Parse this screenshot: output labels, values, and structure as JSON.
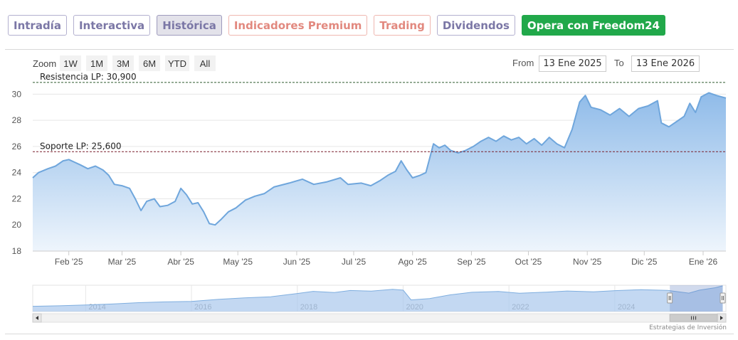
{
  "tabs": [
    {
      "label": "Intradía",
      "style": "purple"
    },
    {
      "label": "Interactiva",
      "style": "purple"
    },
    {
      "label": "Histórica",
      "style": "purple active"
    },
    {
      "label": "Indicadores Premium",
      "style": "coral"
    },
    {
      "label": "Trading",
      "style": "coral"
    },
    {
      "label": "Dividendos",
      "style": "purple"
    },
    {
      "label": "Opera con Freedom24",
      "style": "cta"
    }
  ],
  "toolbar": {
    "zoom_label": "Zoom",
    "zoom_buttons": [
      "1W",
      "1M",
      "3M",
      "6M",
      "YTD",
      "All"
    ],
    "from_label": "From",
    "from_value": "13 Ene 2025",
    "to_label": "To",
    "to_value": "13 Ene 2026"
  },
  "colors": {
    "line": "#6fa6dc",
    "fill_top": "#8fbbe9",
    "fill_bottom": "#eef5fc",
    "resistance": "#2f5a2f",
    "support": "#7a1f2a",
    "grid": "#e6e6e6"
  },
  "chart_data": {
    "type": "area",
    "title": "",
    "xlabel": "",
    "ylabel": "",
    "x_range": [
      "2025-01-13",
      "2026-01-13"
    ],
    "ylim": [
      18,
      31
    ],
    "y_ticks": [
      18,
      20,
      22,
      24,
      26,
      28,
      30
    ],
    "x_ticks": [
      {
        "date": "2025-02-01",
        "label": "Feb '25"
      },
      {
        "date": "2025-03-01",
        "label": "Mar '25"
      },
      {
        "date": "2025-04-01",
        "label": "Abr '25"
      },
      {
        "date": "2025-05-01",
        "label": "May '25"
      },
      {
        "date": "2025-06-01",
        "label": "Jun '25"
      },
      {
        "date": "2025-07-01",
        "label": "Jul '25"
      },
      {
        "date": "2025-08-01",
        "label": "Ago '25"
      },
      {
        "date": "2025-09-01",
        "label": "Sep '25"
      },
      {
        "date": "2025-10-01",
        "label": "Oct '25"
      },
      {
        "date": "2025-11-01",
        "label": "Nov '25"
      },
      {
        "date": "2025-12-01",
        "label": "Dic '25"
      },
      {
        "date": "2026-01-01",
        "label": "Ene '26"
      }
    ],
    "series": [
      {
        "points": [
          [
            "2025-01-13",
            23.6
          ],
          [
            "2025-01-16",
            24.0
          ],
          [
            "2025-01-21",
            24.3
          ],
          [
            "2025-01-25",
            24.5
          ],
          [
            "2025-01-29",
            24.9
          ],
          [
            "2025-02-01",
            25.0
          ],
          [
            "2025-02-04",
            24.8
          ],
          [
            "2025-02-07",
            24.6
          ],
          [
            "2025-02-11",
            24.3
          ],
          [
            "2025-02-15",
            24.5
          ],
          [
            "2025-02-19",
            24.2
          ],
          [
            "2025-02-22",
            23.8
          ],
          [
            "2025-02-25",
            23.1
          ],
          [
            "2025-03-01",
            23.0
          ],
          [
            "2025-03-05",
            22.8
          ],
          [
            "2025-03-08",
            22.0
          ],
          [
            "2025-03-11",
            21.1
          ],
          [
            "2025-03-14",
            21.8
          ],
          [
            "2025-03-18",
            22.0
          ],
          [
            "2025-03-21",
            21.4
          ],
          [
            "2025-03-25",
            21.5
          ],
          [
            "2025-03-29",
            21.8
          ],
          [
            "2025-04-01",
            22.8
          ],
          [
            "2025-04-04",
            22.3
          ],
          [
            "2025-04-07",
            21.6
          ],
          [
            "2025-04-10",
            21.7
          ],
          [
            "2025-04-13",
            21.0
          ],
          [
            "2025-04-16",
            20.1
          ],
          [
            "2025-04-19",
            20.0
          ],
          [
            "2025-04-22",
            20.4
          ],
          [
            "2025-04-26",
            21.0
          ],
          [
            "2025-04-30",
            21.3
          ],
          [
            "2025-05-05",
            21.9
          ],
          [
            "2025-05-10",
            22.2
          ],
          [
            "2025-05-15",
            22.4
          ],
          [
            "2025-05-20",
            22.9
          ],
          [
            "2025-05-28",
            23.2
          ],
          [
            "2025-06-04",
            23.5
          ],
          [
            "2025-06-10",
            23.1
          ],
          [
            "2025-06-17",
            23.3
          ],
          [
            "2025-06-24",
            23.6
          ],
          [
            "2025-06-28",
            23.1
          ],
          [
            "2025-07-05",
            23.2
          ],
          [
            "2025-07-10",
            23.0
          ],
          [
            "2025-07-15",
            23.4
          ],
          [
            "2025-07-19",
            23.8
          ],
          [
            "2025-07-23",
            24.1
          ],
          [
            "2025-07-26",
            24.9
          ],
          [
            "2025-07-29",
            24.2
          ],
          [
            "2025-08-01",
            23.6
          ],
          [
            "2025-08-05",
            23.8
          ],
          [
            "2025-08-08",
            24.0
          ],
          [
            "2025-08-12",
            26.2
          ],
          [
            "2025-08-15",
            25.9
          ],
          [
            "2025-08-18",
            26.1
          ],
          [
            "2025-08-21",
            25.7
          ],
          [
            "2025-08-25",
            25.5
          ],
          [
            "2025-08-29",
            25.7
          ],
          [
            "2025-09-02",
            26.0
          ],
          [
            "2025-09-06",
            26.4
          ],
          [
            "2025-09-10",
            26.7
          ],
          [
            "2025-09-14",
            26.4
          ],
          [
            "2025-09-18",
            26.8
          ],
          [
            "2025-09-22",
            26.5
          ],
          [
            "2025-09-26",
            26.7
          ],
          [
            "2025-09-30",
            26.2
          ],
          [
            "2025-10-04",
            26.6
          ],
          [
            "2025-10-08",
            26.1
          ],
          [
            "2025-10-12",
            26.7
          ],
          [
            "2025-10-16",
            26.2
          ],
          [
            "2025-10-20",
            25.9
          ],
          [
            "2025-10-24",
            27.3
          ],
          [
            "2025-10-28",
            29.4
          ],
          [
            "2025-10-31",
            29.9
          ],
          [
            "2025-11-03",
            29.0
          ],
          [
            "2025-11-08",
            28.8
          ],
          [
            "2025-11-13",
            28.4
          ],
          [
            "2025-11-18",
            28.9
          ],
          [
            "2025-11-23",
            28.3
          ],
          [
            "2025-11-28",
            28.9
          ],
          [
            "2025-12-03",
            29.1
          ],
          [
            "2025-12-08",
            29.5
          ],
          [
            "2025-12-10",
            27.8
          ],
          [
            "2025-12-14",
            27.5
          ],
          [
            "2025-12-18",
            27.9
          ],
          [
            "2025-12-22",
            28.3
          ],
          [
            "2025-12-25",
            29.3
          ],
          [
            "2025-12-28",
            28.6
          ],
          [
            "2025-12-31",
            29.8
          ],
          [
            "2026-01-04",
            30.1
          ],
          [
            "2026-01-08",
            29.9
          ],
          [
            "2026-01-13",
            29.7
          ]
        ]
      }
    ],
    "annotations": [
      {
        "label": "Resistencia LP: 30,900",
        "y": 30.9,
        "style": "resistance"
      },
      {
        "label": "Soporte LP: 25,600",
        "y": 25.6,
        "style": "support"
      }
    ],
    "navigator": {
      "x_range": [
        2013.0,
        2026.1
      ],
      "year_labels": [
        "2014",
        "2016",
        "2018",
        "2020",
        "2022",
        "2024"
      ],
      "selected_range": [
        2025.04,
        2026.04
      ],
      "points": [
        [
          2013.0,
          3.2
        ],
        [
          2013.5,
          3.5
        ],
        [
          2014.0,
          4.0
        ],
        [
          2014.5,
          4.6
        ],
        [
          2015.0,
          5.4
        ],
        [
          2015.5,
          5.9
        ],
        [
          2016.0,
          6.2
        ],
        [
          2016.5,
          7.4
        ],
        [
          2017.0,
          8.3
        ],
        [
          2017.5,
          9.0
        ],
        [
          2018.0,
          11.0
        ],
        [
          2018.3,
          12.3
        ],
        [
          2018.7,
          11.6
        ],
        [
          2019.0,
          12.8
        ],
        [
          2019.4,
          12.4
        ],
        [
          2019.8,
          13.5
        ],
        [
          2020.0,
          13.0
        ],
        [
          2020.15,
          7.1
        ],
        [
          2020.5,
          7.9
        ],
        [
          2020.9,
          10.2
        ],
        [
          2021.3,
          11.7
        ],
        [
          2021.8,
          12.2
        ],
        [
          2022.2,
          11.1
        ],
        [
          2022.7,
          11.8
        ],
        [
          2023.1,
          12.5
        ],
        [
          2023.6,
          12.0
        ],
        [
          2024.0,
          12.7
        ],
        [
          2024.5,
          13.3
        ],
        [
          2025.0,
          12.9
        ],
        [
          2025.4,
          11.2
        ],
        [
          2025.6,
          13.0
        ],
        [
          2025.9,
          14.5
        ],
        [
          2026.04,
          15.6
        ]
      ]
    }
  },
  "credit": "Estrategias de Inversión"
}
